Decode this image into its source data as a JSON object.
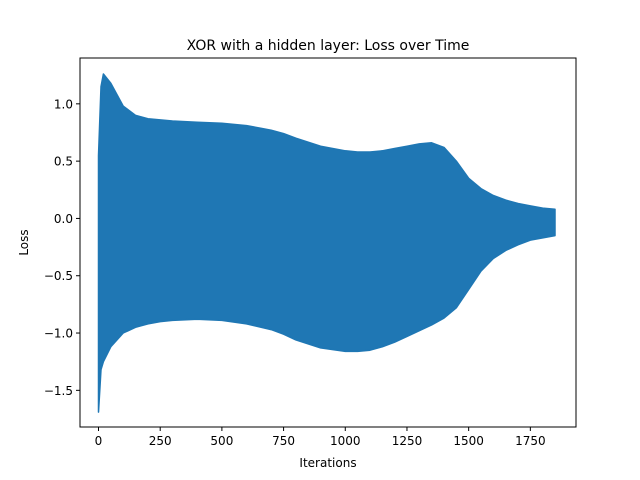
{
  "chart_data": {
    "type": "area",
    "title": "XOR with a hidden layer: Loss over Time",
    "xlabel": "Iterations",
    "ylabel": "Loss",
    "xlim": [
      -75,
      1935
    ],
    "ylim": [
      -1.82,
      1.4
    ],
    "xticks": [
      0,
      250,
      500,
      750,
      1000,
      1250,
      1500,
      1750
    ],
    "yticks": [
      -1.5,
      -1.0,
      -0.5,
      0.0,
      0.5,
      1.0
    ],
    "ytick_labels": [
      "−1.5",
      "−1.0",
      "−0.5",
      "0.0",
      "0.5",
      "1.0"
    ],
    "grid": false,
    "legend": "none",
    "series": [
      {
        "color": "#1f77b4",
        "x": [
          0,
          10,
          20,
          50,
          100,
          150,
          200,
          250,
          300,
          400,
          500,
          600,
          700,
          750,
          800,
          900,
          1000,
          1050,
          1100,
          1150,
          1200,
          1250,
          1300,
          1350,
          1400,
          1450,
          1500,
          1550,
          1600,
          1650,
          1700,
          1750,
          1800,
          1850
        ],
        "upper": [
          0.55,
          1.15,
          1.26,
          1.18,
          0.98,
          0.9,
          0.87,
          0.86,
          0.85,
          0.84,
          0.83,
          0.81,
          0.77,
          0.74,
          0.7,
          0.63,
          0.59,
          0.58,
          0.58,
          0.59,
          0.61,
          0.63,
          0.65,
          0.66,
          0.62,
          0.5,
          0.35,
          0.26,
          0.2,
          0.16,
          0.13,
          0.11,
          0.09,
          0.08
        ],
        "lower": [
          -1.69,
          -1.32,
          -1.25,
          -1.12,
          -1.0,
          -0.95,
          -0.92,
          -0.9,
          -0.89,
          -0.88,
          -0.89,
          -0.92,
          -0.97,
          -1.01,
          -1.06,
          -1.13,
          -1.16,
          -1.16,
          -1.15,
          -1.12,
          -1.08,
          -1.03,
          -0.98,
          -0.93,
          -0.87,
          -0.78,
          -0.62,
          -0.46,
          -0.35,
          -0.28,
          -0.23,
          -0.19,
          -0.17,
          -0.15
        ]
      }
    ]
  }
}
